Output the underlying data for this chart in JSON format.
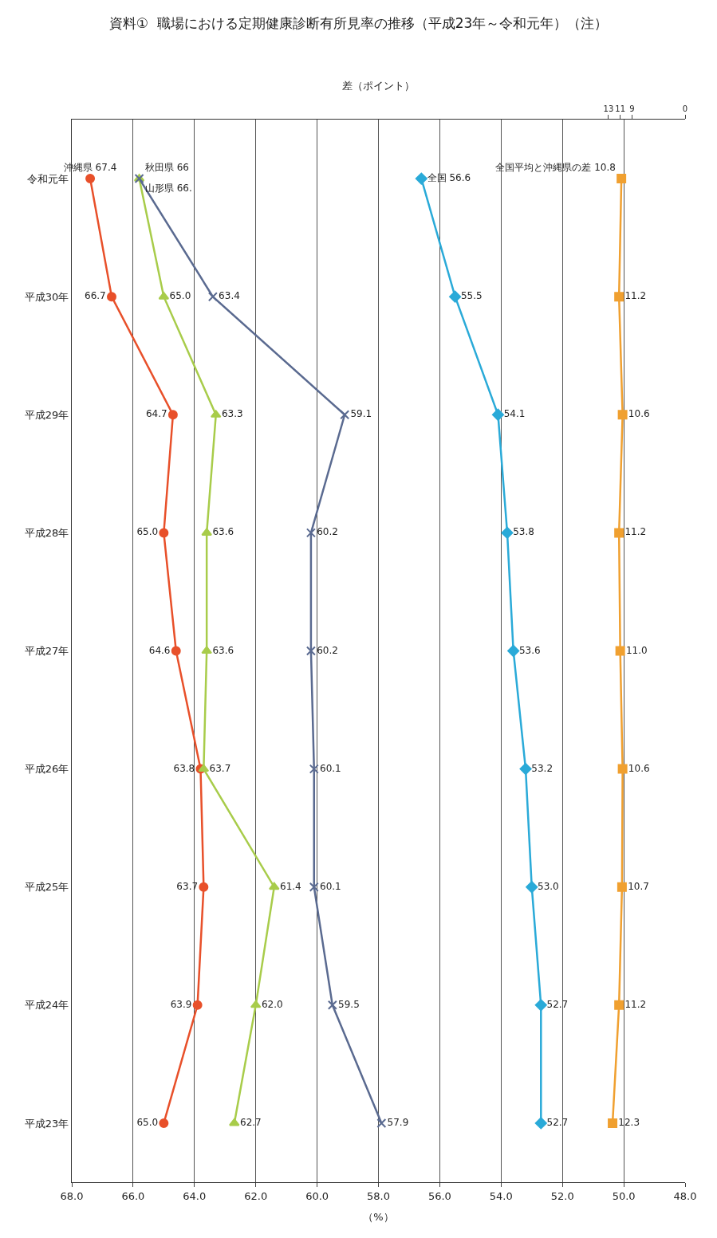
{
  "chart_data": {
    "type": "line",
    "orientation": "horizontal",
    "title": "資料①  職場における定期健康診断有所見率の推移（平成23年～令和元年）（注）",
    "xlabel": "（%）",
    "x2label": "差（ポイント）",
    "categories": [
      "令和元年",
      "平成30年",
      "平成29年",
      "平成28年",
      "平成27年",
      "平成26年",
      "平成25年",
      "平成24年",
      "平成23年"
    ],
    "series": [
      {
        "name": "沖縄県",
        "color": "#e8502a",
        "marker": "circle",
        "values": [
          67.4,
          66.7,
          64.7,
          65.0,
          64.6,
          63.8,
          63.7,
          63.9,
          65.0
        ],
        "value_labels": [
          "67.4",
          "66.7",
          "64.7",
          "65.0",
          "64.6",
          "63.8",
          "63.7",
          "63.9",
          "65.0"
        ]
      },
      {
        "name": "秋田県",
        "color": "#a8cc4a",
        "marker": "triangle",
        "values": [
          65.8,
          65.0,
          63.3,
          63.6,
          63.6,
          63.7,
          61.4,
          62.0,
          62.7
        ],
        "value_labels": [
          "66",
          "65.0",
          "63.3",
          "63.6",
          "63.6",
          "63.7",
          "61.4",
          "62.0",
          "62.7"
        ]
      },
      {
        "name": "山形県",
        "color": "#5a6a90",
        "marker": "cross",
        "values": [
          65.8,
          63.4,
          59.1,
          60.2,
          60.2,
          60.1,
          60.1,
          59.5,
          57.9
        ],
        "value_labels": [
          "66.",
          "63.4",
          "59.1",
          "60.2",
          "60.2",
          "60.1",
          "60.1",
          "59.5",
          "57.9"
        ]
      },
      {
        "name": "全国",
        "color": "#2aaad8",
        "marker": "diamond",
        "values": [
          56.6,
          55.5,
          54.1,
          53.8,
          53.6,
          53.2,
          53.0,
          52.7,
          52.7
        ],
        "value_labels": [
          "56.6",
          "55.5",
          "54.1",
          "53.8",
          "53.6",
          "53.2",
          "53.0",
          "52.7",
          "52.7"
        ]
      },
      {
        "name": "全国平均と沖縄県の差",
        "color": "#f0a030",
        "marker": "square",
        "axis": "x2",
        "values": [
          10.8,
          11.2,
          10.6,
          11.2,
          11.0,
          10.6,
          10.7,
          11.2,
          12.3
        ],
        "value_labels": [
          "10.8",
          "11.2",
          "10.6",
          "11.2",
          "11.0",
          "10.6",
          "10.7",
          "11.2",
          "12.3"
        ]
      }
    ],
    "xlim": [
      68,
      48
    ],
    "xticks": [
      {
        "value": 68,
        "label": "68.0"
      },
      {
        "value": 66,
        "label": "66.0"
      },
      {
        "value": 64,
        "label": "64.0"
      },
      {
        "value": 62,
        "label": "62.0"
      },
      {
        "value": 60,
        "label": "60.0"
      },
      {
        "value": 58,
        "label": "58.0"
      },
      {
        "value": 56,
        "label": "56.0"
      },
      {
        "value": 54,
        "label": "54.0"
      },
      {
        "value": 52,
        "label": "52.0"
      },
      {
        "value": 50,
        "label": "50.0"
      },
      {
        "value": 48,
        "label": "48.0"
      }
    ],
    "x2lim": [
      104,
      0
    ],
    "x2ticks": [
      0,
      9,
      11,
      13
    ],
    "grid": "x",
    "legend": false,
    "line_style": "solid"
  }
}
